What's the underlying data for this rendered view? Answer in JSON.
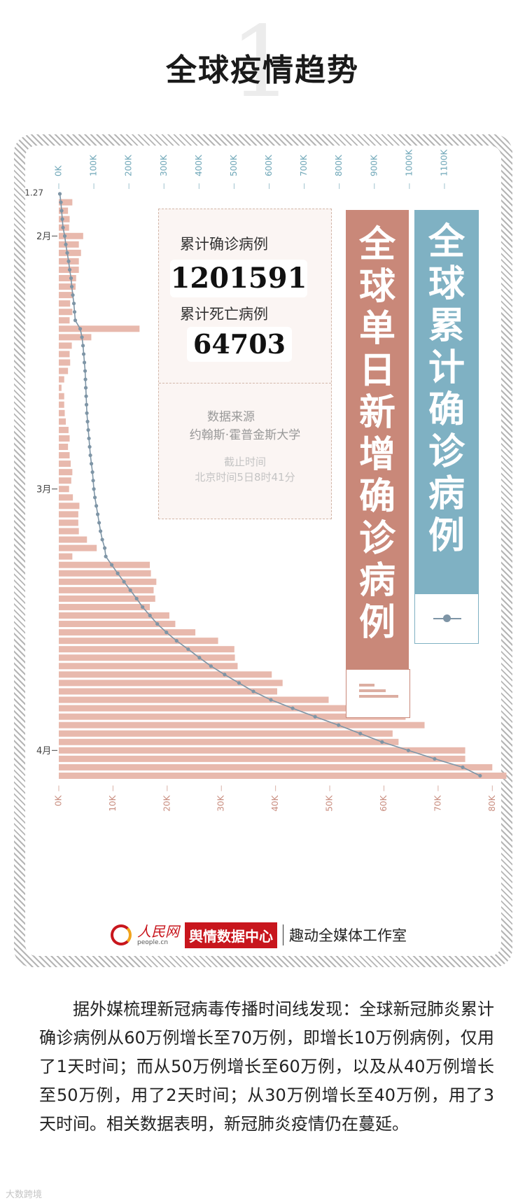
{
  "section_number": "1",
  "title": "全球疫情趋势",
  "stats": {
    "confirmed_label": "累计确诊病例",
    "confirmed_value": "1201591",
    "deaths_label": "累计死亡病例",
    "deaths_value": "64703",
    "source_label": "数据来源",
    "source_value": "约翰斯·霍普金斯大学",
    "cutoff_label": "截止时间",
    "cutoff_value": "北京时间5日8时41分"
  },
  "legend": {
    "daily_new": "全\n球\n单\n日\n新\n增\n确\n诊\n病\n例",
    "cumulative": "全\n球\n累\n计\n确\n诊\n病\n例"
  },
  "colors": {
    "daily_bar": "#e8b9ad",
    "daily_banner": "#c98879",
    "cumulative_line": "#7e95a6",
    "cumulative_banner": "#7fb1c3"
  },
  "credits": {
    "logo_cn": "人民网",
    "logo_url": "people.cn",
    "brand": "舆情数据中心",
    "studio": "趣动全媒体工作室"
  },
  "paragraph": "据外媒梳理新冠病毒传播时间线发现：全球新冠肺炎累计确诊病例从60万例增长至70万例，即增长10万例病例，仅用了1天时间；而从50万例增长至60万例，以及从40万例增长至50万例，用了2天时间；从30万例增长至40万例，用了3天时间。相关数据表明，新冠肺炎疫情仍在蔓延。",
  "watermark": "大数跨境",
  "chart_data": {
    "type": "bar",
    "orientation": "horizontal",
    "categories": [
      "1.27",
      "",
      "",
      "",
      "",
      "2月",
      "",
      "",
      "",
      "",
      "",
      "",
      "",
      "",
      "",
      "",
      "",
      "",
      "",
      "",
      "",
      "",
      "",
      "",
      "",
      "",
      "",
      "",
      "",
      "",
      "",
      "",
      "",
      "",
      "",
      "3月",
      "",
      "",
      "",
      "",
      "",
      "",
      "",
      "",
      "",
      "",
      "",
      "",
      "",
      "",
      "",
      "",
      "",
      "",
      "",
      "",
      "",
      "",
      "",
      "",
      "",
      "",
      "",
      "",
      "",
      "",
      "4月",
      "",
      "",
      ""
    ],
    "series": [
      {
        "name": "全球单日新增确诊病例",
        "axis": "bottom",
        "values": [
          0,
          2500,
          1700,
          2000,
          1900,
          4500,
          3700,
          4100,
          3700,
          3700,
          3200,
          3100,
          2700,
          2100,
          2500,
          2000,
          14900,
          6000,
          2400,
          2000,
          2100,
          1700,
          1000,
          500,
          1000,
          1000,
          1100,
          1300,
          1800,
          2000,
          1700,
          2000,
          2200,
          2500,
          2300,
          1900,
          2600,
          3800,
          3600,
          3600,
          3700,
          5200,
          7000,
          2500,
          16800,
          17000,
          18000,
          17500,
          17800,
          16800,
          20400,
          21500,
          25200,
          29400,
          32400,
          32500,
          33000,
          39300,
          41300,
          40300,
          49800,
          62000,
          64000,
          67500,
          61600,
          62700,
          75000,
          75000,
          80000,
          82600
        ],
        "xlim": [
          0,
          85000
        ],
        "ticks": [
          "0K",
          "10K",
          "20K",
          "30K",
          "40K",
          "50K",
          "60K",
          "70K",
          "80K"
        ]
      },
      {
        "name": "全球累计确诊病例",
        "axis": "top",
        "values": [
          3000,
          6000,
          8000,
          10000,
          12000,
          17000,
          20000,
          24000,
          28000,
          31000,
          35000,
          37000,
          40000,
          43000,
          45000,
          47000,
          61000,
          66000,
          69000,
          71000,
          73000,
          75000,
          76000,
          77000,
          78000,
          79000,
          80000,
          82000,
          84000,
          86000,
          88000,
          90000,
          93000,
          96000,
          98000,
          100000,
          103000,
          107000,
          111000,
          115000,
          119000,
          124000,
          131000,
          134000,
          151000,
          168000,
          186000,
          204000,
          222000,
          239000,
          260000,
          281000,
          307000,
          336000,
          369000,
          401000,
          434000,
          473000,
          514000,
          555000,
          605000,
          667000,
          731000,
          798000,
          860000,
          922000,
          997000,
          1072000,
          1152000,
          1201591
        ],
        "xlim": [
          0,
          1150000
        ],
        "ticks": [
          "0K",
          "100K",
          "200K",
          "300K",
          "400K",
          "500K",
          "600K",
          "700K",
          "800K",
          "900K",
          "1000K",
          "1100K"
        ]
      }
    ]
  }
}
